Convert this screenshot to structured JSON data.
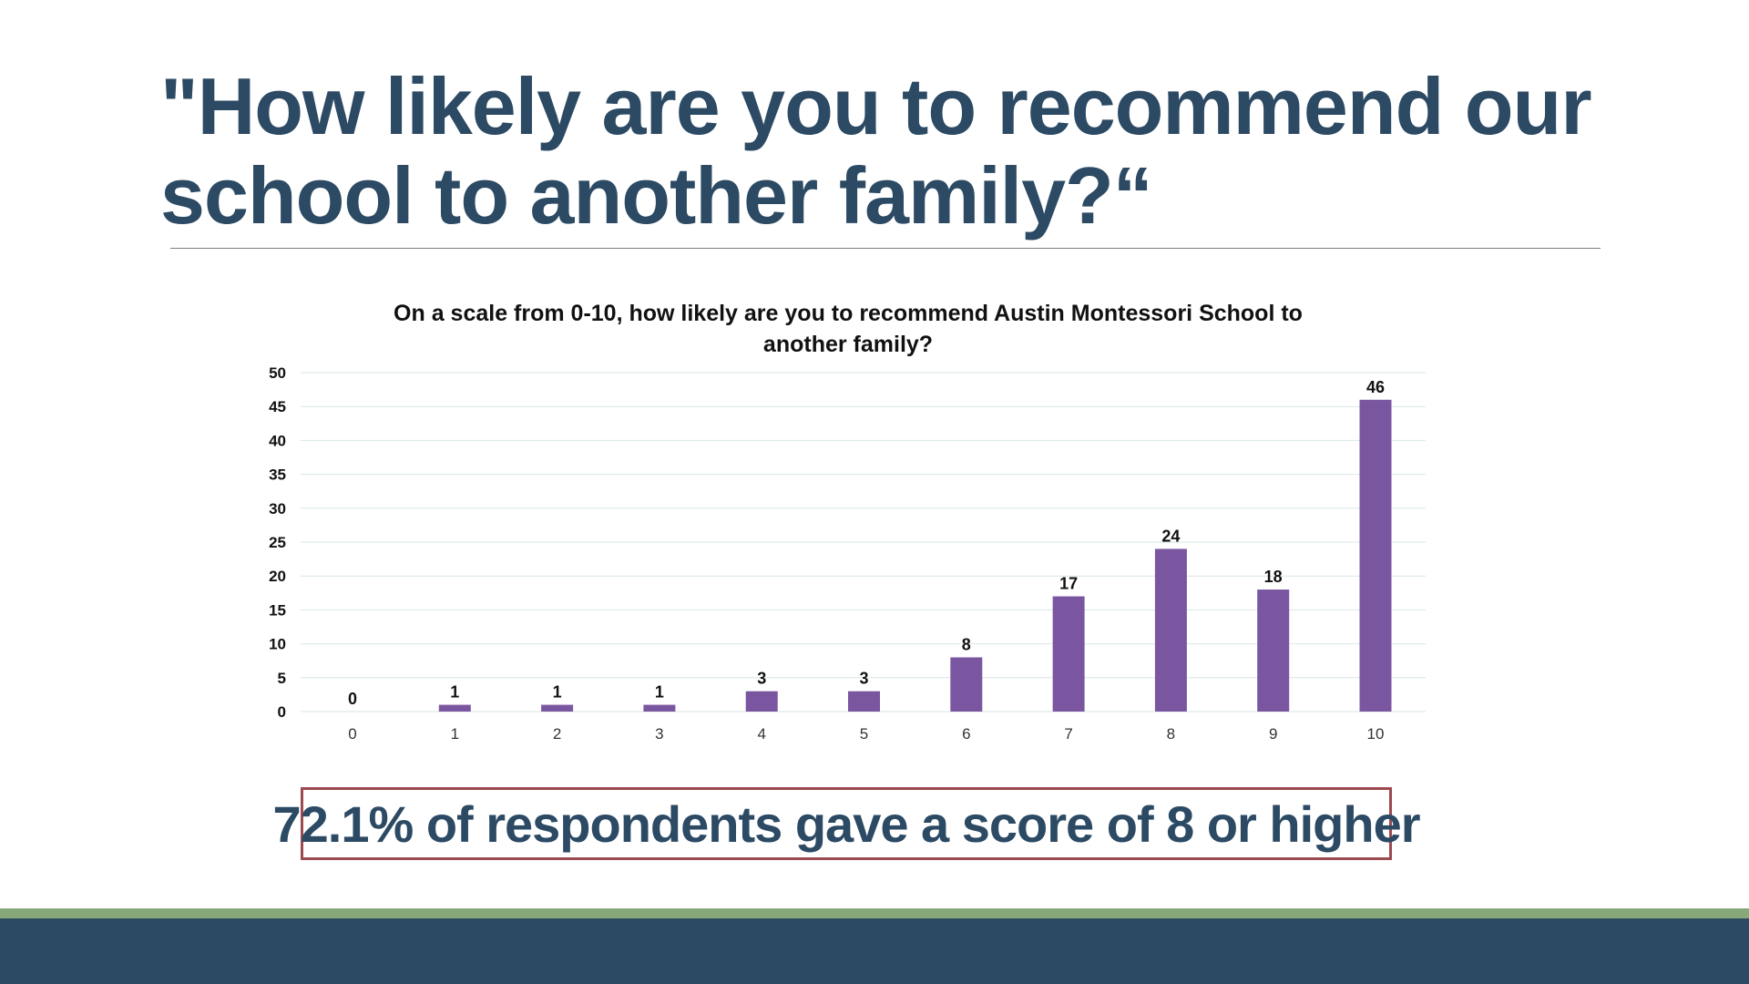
{
  "slide": {
    "title": "\"How likely are you to recommend our school to another family?“",
    "callout": "72.1% of respondents gave a score of 8 or higher"
  },
  "colors": {
    "title": "#2c4a64",
    "bar": "#7b56a0",
    "callout_border": "#9c4a50",
    "footer_accent": "#87a97a",
    "footer_band": "#2c4a64"
  },
  "chart_data": {
    "type": "bar",
    "title_lines": [
      "On a scale from 0-10, how likely are you to recommend Austin Montessori School to",
      "another family?"
    ],
    "categories": [
      "0",
      "1",
      "2",
      "3",
      "4",
      "5",
      "6",
      "7",
      "8",
      "9",
      "10"
    ],
    "values": [
      0,
      1,
      1,
      1,
      3,
      3,
      8,
      17,
      24,
      18,
      46
    ],
    "yticks": [
      0,
      5,
      10,
      15,
      20,
      25,
      30,
      35,
      40,
      45,
      50
    ],
    "ylim": [
      0,
      50
    ],
    "xlabel": "",
    "ylabel": "",
    "grid": true,
    "legend": "none"
  }
}
